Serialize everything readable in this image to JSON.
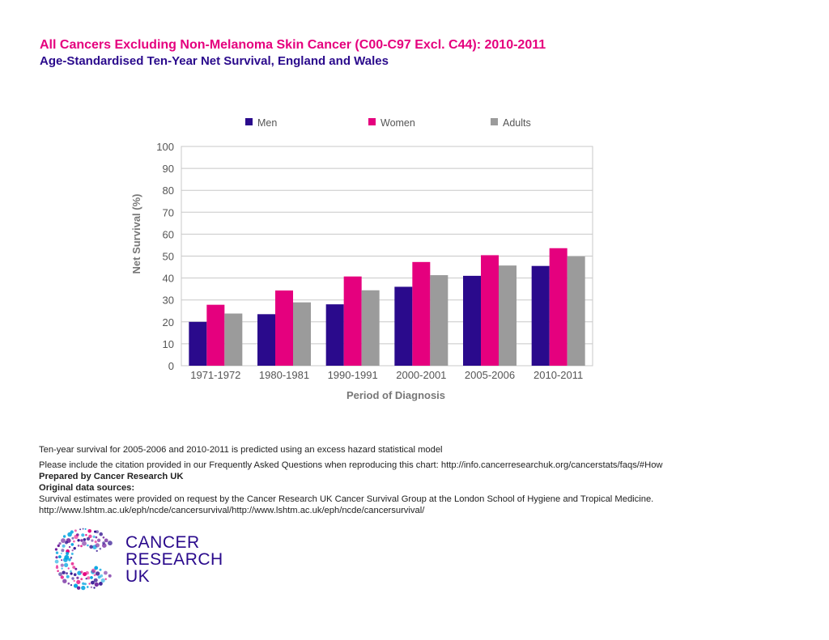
{
  "header": {
    "title": "All Cancers Excluding Non-Melanoma Skin Cancer (C00-C97 Excl. C44): 2010-2011",
    "subtitle": "Age-Standardised Ten-Year Net Survival, England and Wales"
  },
  "chart_data": {
    "type": "bar",
    "title": "",
    "xlabel": "Period of Diagnosis",
    "ylabel": "Net Survival (%)",
    "ylim": [
      0,
      100
    ],
    "yticks": [
      0,
      10,
      20,
      30,
      40,
      50,
      60,
      70,
      80,
      90,
      100
    ],
    "grid": true,
    "legend_position": "top",
    "categories": [
      "1971-1972",
      "1980-1981",
      "1990-1991",
      "2000-2001",
      "2005-2006",
      "2010-2011"
    ],
    "series": [
      {
        "name": "Men",
        "color": "#2a0a8c",
        "values": [
          20,
          23.5,
          28,
          36,
          41,
          45.5
        ]
      },
      {
        "name": "Women",
        "color": "#e5007e",
        "values": [
          27.8,
          34.3,
          40.7,
          47.3,
          50.4,
          53.6
        ]
      },
      {
        "name": "Adults",
        "color": "#9b9b9b",
        "values": [
          23.8,
          28.9,
          34.4,
          41.3,
          45.7,
          49.8
        ]
      }
    ]
  },
  "notes": {
    "predicted": "Ten-year survival for 2005-2006 and 2010-2011 is predicted using an excess hazard statistical model",
    "citation": "Please include the citation provided in our Frequently Asked Questions when reproducing this chart: http://info.cancerresearchuk.org/cancerstats/faqs/#How",
    "prepared_by": "Prepared by Cancer Research UK",
    "sources_heading": "Original data sources:",
    "sources_text": "Survival estimates were provided on request by the Cancer Research UK Cancer Survival Group at the London School of Hygiene and Tropical Medicine.",
    "sources_url": "http://www.lshtm.ac.uk/eph/ncde/cancersurvival/http://www.lshtm.ac.uk/eph/ncde/cancersurvival/"
  },
  "logo": {
    "line1": "CANCER",
    "line2": "RESEARCH",
    "line3": "UK",
    "colors": [
      "#2a0a8c",
      "#e5007e",
      "#00a3e0",
      "#6a1b9a"
    ]
  }
}
